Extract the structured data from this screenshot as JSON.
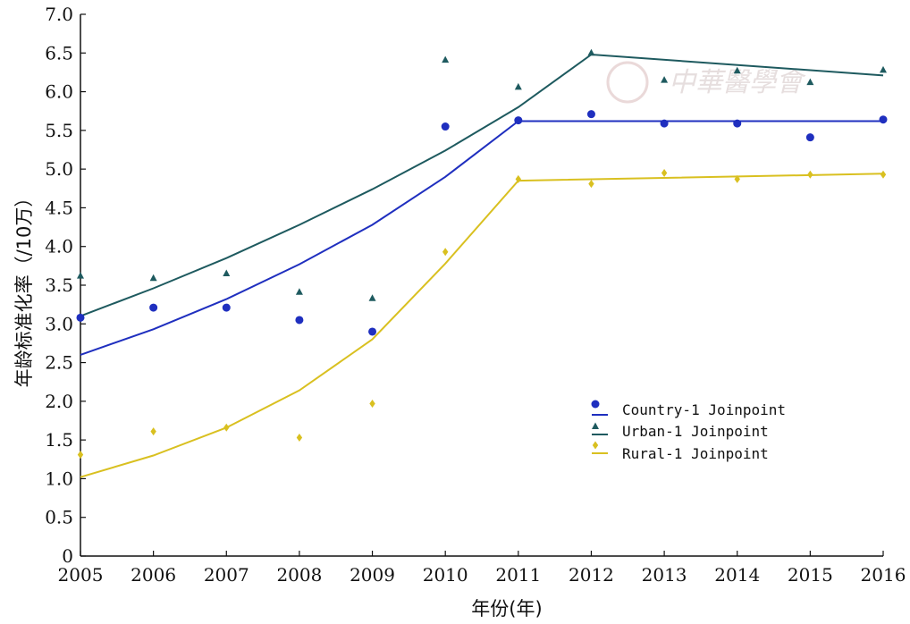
{
  "chart_data": {
    "type": "line",
    "xlabel": "年份(年)",
    "ylabel": "年龄标准化率（/10万）",
    "x": [
      2005,
      2006,
      2007,
      2008,
      2009,
      2010,
      2011,
      2012,
      2013,
      2014,
      2015,
      2016
    ],
    "x_tick_labels": [
      "2005",
      "2006",
      "2007",
      "2008",
      "2009",
      "2010",
      "2011",
      "2012",
      "2013",
      "2014",
      "2015",
      "2016"
    ],
    "y_tick_labels": [
      "0",
      "0.5",
      "1.0",
      "1.5",
      "2.0",
      "2.5",
      "3.0",
      "3.5",
      "4.0",
      "4.5",
      "5.0",
      "5.5",
      "6.0",
      "6.5",
      "7.0"
    ],
    "xlim": [
      2005,
      2016
    ],
    "ylim": [
      0,
      7.0
    ],
    "grid": false,
    "legend_position": "center-right",
    "series": [
      {
        "name": "Country-1 Joinpoint",
        "color": "#1f2fbf",
        "marker": "circle",
        "observed": [
          3.08,
          3.21,
          3.21,
          3.05,
          2.9,
          5.55,
          5.63,
          5.71,
          5.59,
          5.59,
          5.41,
          5.64
        ],
        "fitted_x": [
          2005,
          2006,
          2007,
          2008,
          2009,
          2010,
          2011,
          2016
        ],
        "fitted": [
          2.6,
          2.93,
          3.32,
          3.77,
          4.28,
          4.9,
          5.62,
          5.62
        ]
      },
      {
        "name": "Urban-1 Joinpoint",
        "color": "#1e5a5f",
        "marker": "triangle",
        "observed": [
          3.62,
          3.59,
          3.65,
          3.41,
          3.33,
          6.41,
          6.06,
          6.5,
          6.15,
          6.27,
          6.12,
          6.28
        ],
        "fitted_x": [
          2005,
          2006,
          2007,
          2008,
          2009,
          2010,
          2011,
          2012,
          2016
        ],
        "fitted": [
          3.1,
          3.46,
          3.85,
          4.28,
          4.74,
          5.24,
          5.8,
          6.48,
          6.21
        ]
      },
      {
        "name": "Rural-1 Joinpoint",
        "color": "#d9c020",
        "marker": "diamond",
        "observed": [
          1.31,
          1.61,
          1.66,
          1.53,
          1.97,
          3.93,
          4.87,
          4.81,
          4.95,
          4.87,
          4.93,
          4.93
        ],
        "fitted_x": [
          2005,
          2006,
          2007,
          2008,
          2009,
          2010,
          2011,
          2016
        ],
        "fitted": [
          1.02,
          1.3,
          1.66,
          2.14,
          2.8,
          3.78,
          4.85,
          4.94
        ]
      }
    ]
  },
  "watermark": {
    "text": "中華醫學會",
    "color": "#e0d0d0"
  }
}
